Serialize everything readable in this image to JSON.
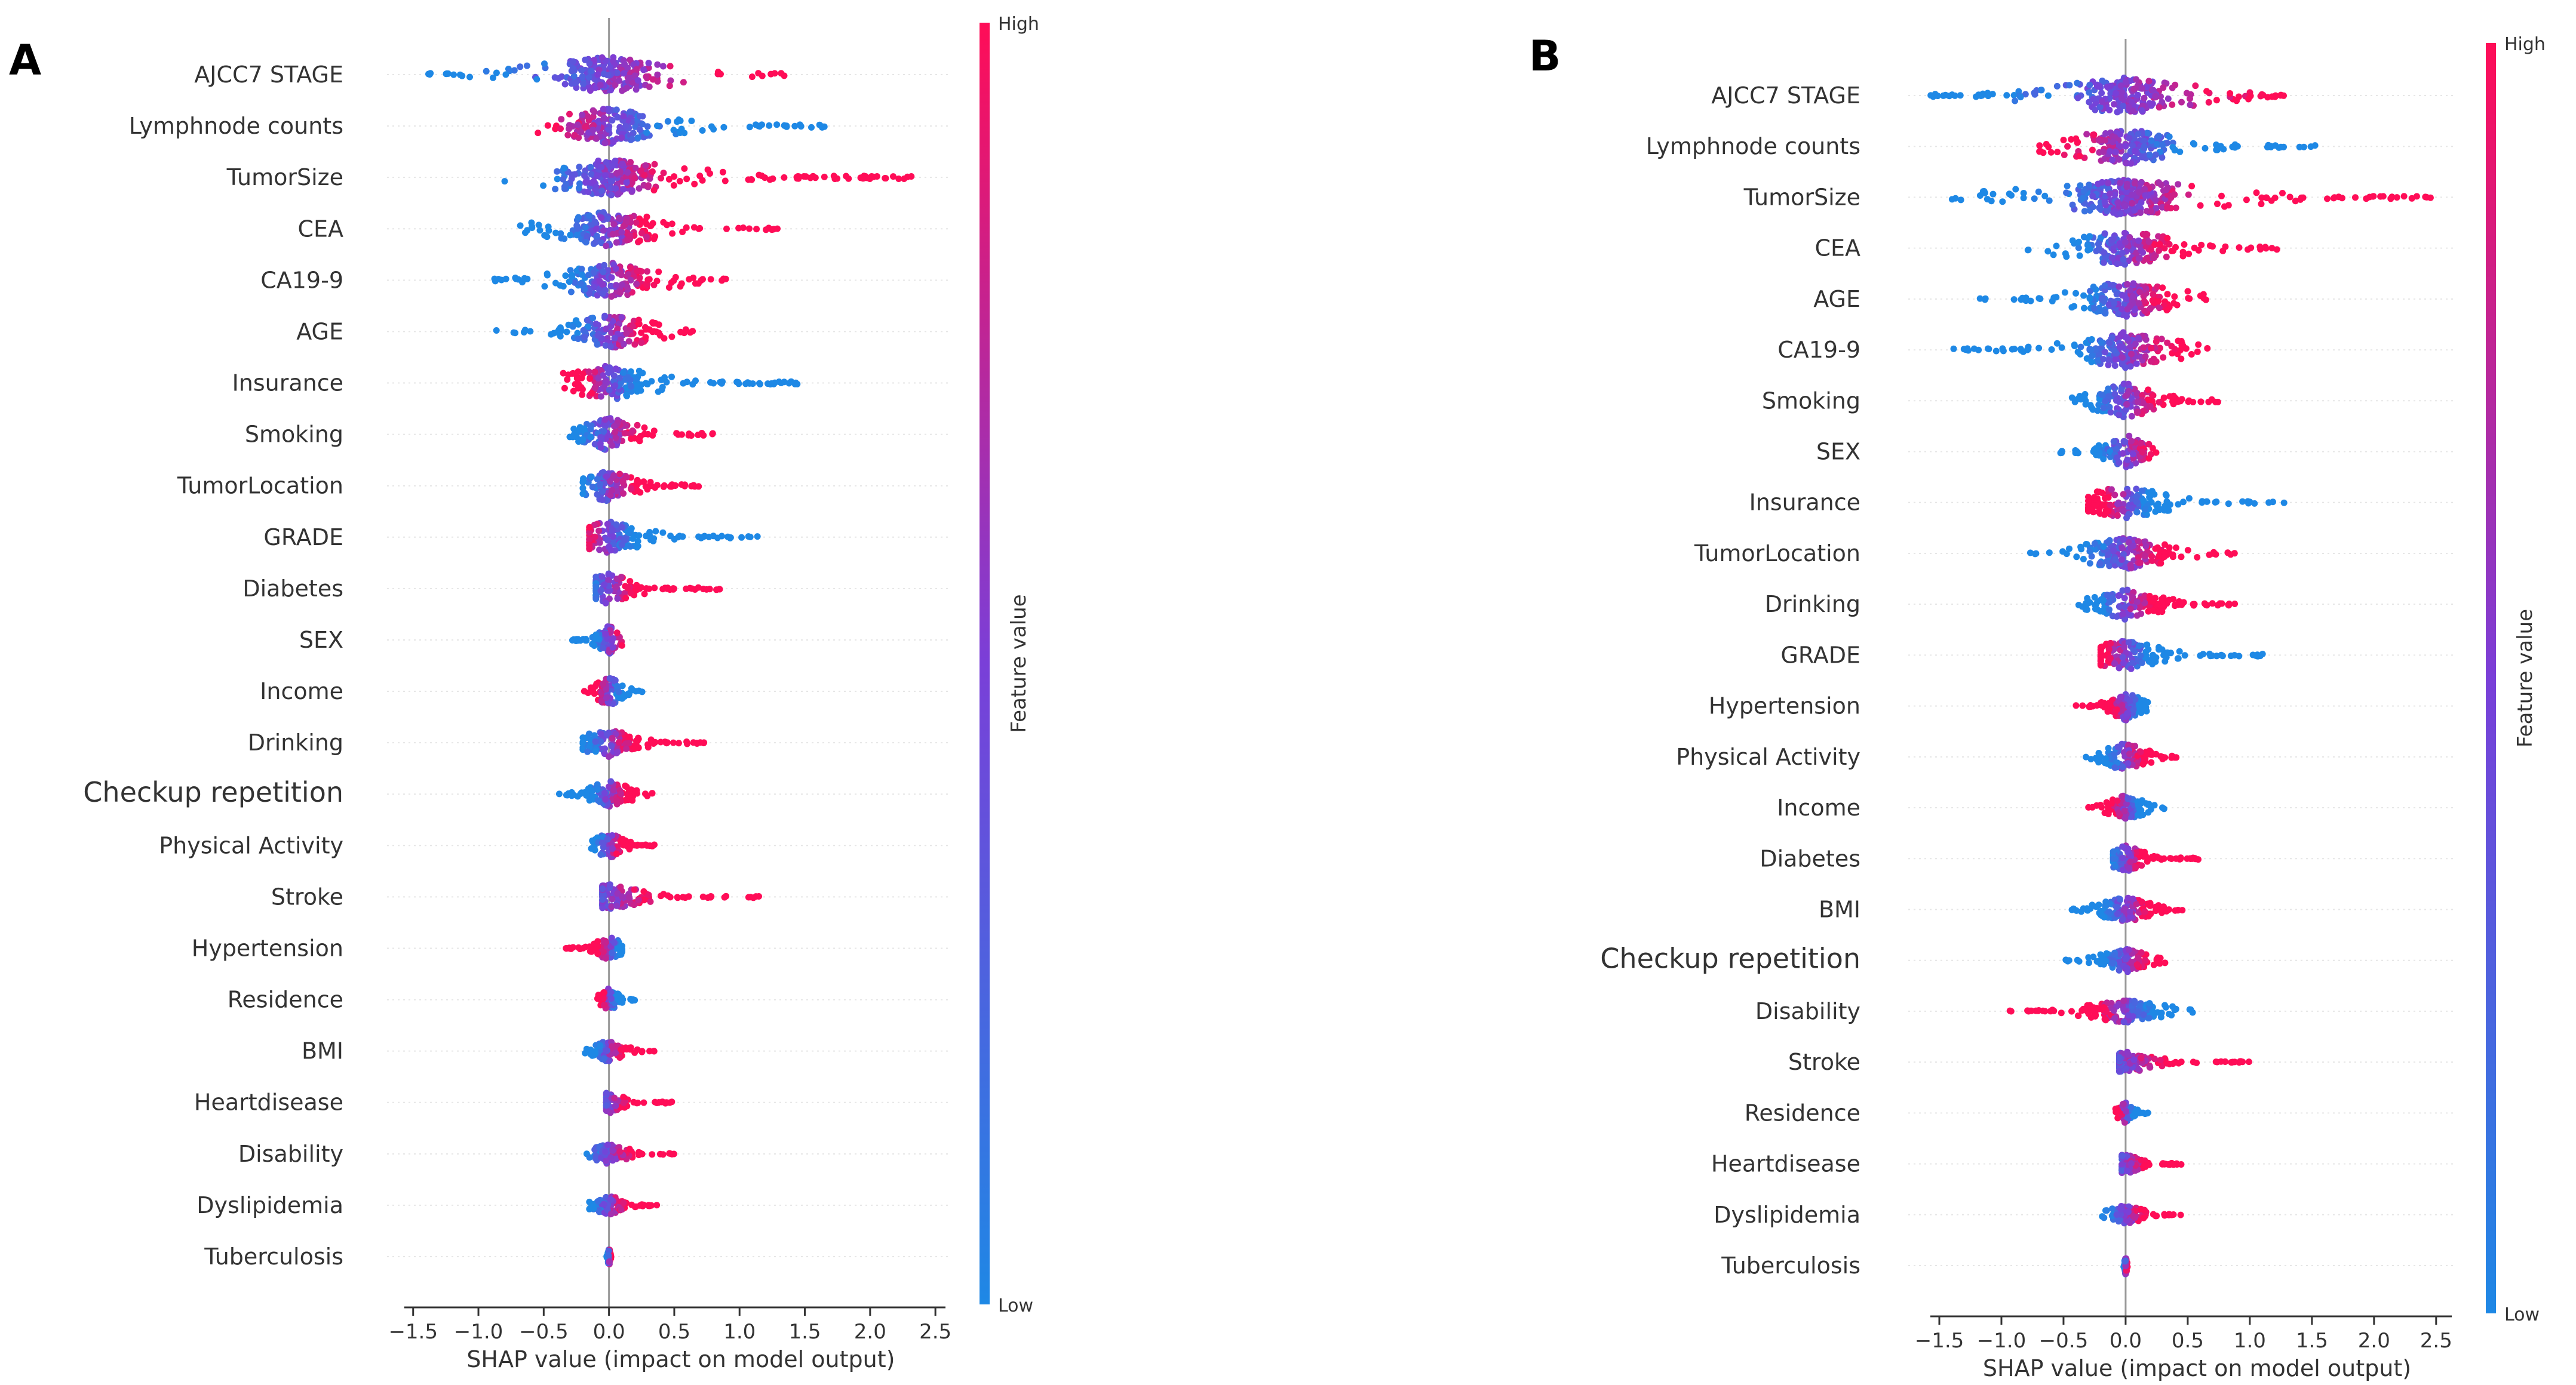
{
  "colors": {
    "high": "#ff0d57",
    "low": "#1e88e5",
    "mid": "#7a3fd8",
    "zero_line": "#999999",
    "axis": "#333333"
  },
  "chart_data": [
    {
      "panel_label": "A",
      "type": "scatter",
      "subtype": "shap-beeswarm",
      "xlabel": "SHAP value (impact on model output)",
      "xlim": [
        -1.7,
        2.6
      ],
      "xticks": [
        -1.5,
        -1.0,
        -0.5,
        0.0,
        0.5,
        1.0,
        1.5,
        2.0,
        2.5
      ],
      "xtick_labels": [
        "−1.5",
        "−1.0",
        "−0.5",
        "0.0",
        "0.5",
        "1.0",
        "1.5",
        "2.0",
        "2.5"
      ],
      "colorbar": {
        "label": "Feature value",
        "high": "High",
        "low": "Low"
      },
      "features": [
        {
          "name": "AJCC7 STAGE",
          "min": -1.45,
          "max": 1.35,
          "low_side": "left",
          "sep": 1.0
        },
        {
          "name": "Lymphnode counts",
          "min": -0.6,
          "max": 1.65,
          "low_side": "right",
          "sep": 0.6
        },
        {
          "name": "TumorSize",
          "min": -0.8,
          "max": 2.35,
          "low_side": "left",
          "sep": 0.5
        },
        {
          "name": "CEA",
          "min": -0.7,
          "max": 1.3,
          "low_side": "left",
          "sep": 0.5
        },
        {
          "name": "CA19-9",
          "min": -0.9,
          "max": 0.95,
          "low_side": "left",
          "sep": 0.5
        },
        {
          "name": "AGE",
          "min": -0.9,
          "max": 0.65,
          "low_side": "left",
          "sep": 0.5
        },
        {
          "name": "Insurance",
          "min": -0.35,
          "max": 1.45,
          "low_side": "right",
          "sep": 0.3
        },
        {
          "name": "Smoking",
          "min": -0.3,
          "max": 0.8,
          "low_side": "left",
          "sep": 0.6
        },
        {
          "name": "TumorLocation",
          "min": -0.2,
          "max": 0.72,
          "low_side": "left",
          "sep": 0.6
        },
        {
          "name": "GRADE",
          "min": -0.15,
          "max": 1.15,
          "low_side": "right",
          "sep": 0.4
        },
        {
          "name": "Diabetes",
          "min": -0.1,
          "max": 0.85,
          "low_side": "left",
          "sep": 0.5
        },
        {
          "name": "SEX",
          "min": -0.3,
          "max": 0.1,
          "low_side": "left",
          "sep": 0.8
        },
        {
          "name": "Income",
          "min": -0.2,
          "max": 0.27,
          "low_side": "right",
          "sep": 0.5
        },
        {
          "name": "Drinking",
          "min": -0.2,
          "max": 0.8,
          "low_side": "left",
          "sep": 0.5
        },
        {
          "name": "Checkup repetition",
          "min": -0.4,
          "max": 0.35,
          "low_side": "left",
          "sep": 0.5
        },
        {
          "name": "Physical Activity",
          "min": -0.15,
          "max": 0.35,
          "low_side": "left",
          "sep": 0.5
        },
        {
          "name": "Stroke",
          "min": -0.05,
          "max": 1.15,
          "low_side": "left",
          "sep": 0.8
        },
        {
          "name": "Hypertension",
          "min": -0.35,
          "max": 0.1,
          "low_side": "right",
          "sep": 0.5
        },
        {
          "name": "Residence",
          "min": -0.1,
          "max": 0.2,
          "low_side": "right",
          "sep": 0.5
        },
        {
          "name": "BMI",
          "min": -0.2,
          "max": 0.35,
          "low_side": "left",
          "sep": 0.5
        },
        {
          "name": "Heartdisease",
          "min": -0.02,
          "max": 0.5,
          "low_side": "left",
          "sep": 0.8
        },
        {
          "name": "Disability",
          "min": -0.2,
          "max": 0.5,
          "low_side": "left",
          "sep": 0.7
        },
        {
          "name": "Dyslipidemia",
          "min": -0.15,
          "max": 0.4,
          "low_side": "left",
          "sep": 0.7
        },
        {
          "name": "Tuberculosis",
          "min": -0.02,
          "max": 0.02,
          "low_side": "left",
          "sep": 0.5
        }
      ]
    },
    {
      "panel_label": "B",
      "type": "scatter",
      "subtype": "shap-beeswarm",
      "xlabel": "SHAP value (impact on model output)",
      "xlim": [
        -1.75,
        2.65
      ],
      "xticks": [
        -1.5,
        -1.0,
        -0.5,
        0.0,
        0.5,
        1.0,
        1.5,
        2.0,
        2.5
      ],
      "xtick_labels": [
        "−1.5",
        "−1.0",
        "−0.5",
        "0.0",
        "0.5",
        "1.0",
        "1.5",
        "2.0",
        "2.5"
      ],
      "colorbar": {
        "label": "Feature value",
        "high": "High",
        "low": "Low"
      },
      "features": [
        {
          "name": "AJCC7 STAGE",
          "min": -1.6,
          "max": 1.3,
          "low_side": "left",
          "sep": 1.0
        },
        {
          "name": "Lymphnode counts",
          "min": -0.7,
          "max": 1.55,
          "low_side": "right",
          "sep": 0.6
        },
        {
          "name": "TumorSize",
          "min": -1.4,
          "max": 2.5,
          "low_side": "left",
          "sep": 0.5
        },
        {
          "name": "CEA",
          "min": -0.8,
          "max": 1.25,
          "low_side": "left",
          "sep": 0.5
        },
        {
          "name": "AGE",
          "min": -1.2,
          "max": 0.75,
          "low_side": "left",
          "sep": 0.5
        },
        {
          "name": "CA19-9",
          "min": -1.4,
          "max": 0.75,
          "low_side": "left",
          "sep": 0.5
        },
        {
          "name": "Smoking",
          "min": -0.45,
          "max": 0.75,
          "low_side": "left",
          "sep": 0.6
        },
        {
          "name": "SEX",
          "min": -0.55,
          "max": 0.25,
          "low_side": "left",
          "sep": 0.8
        },
        {
          "name": "Insurance",
          "min": -0.3,
          "max": 1.3,
          "low_side": "right",
          "sep": 0.3
        },
        {
          "name": "TumorLocation",
          "min": -0.8,
          "max": 0.95,
          "low_side": "left",
          "sep": 0.5
        },
        {
          "name": "Drinking",
          "min": -0.4,
          "max": 0.9,
          "low_side": "left",
          "sep": 0.5
        },
        {
          "name": "GRADE",
          "min": -0.2,
          "max": 1.15,
          "low_side": "right",
          "sep": 0.4
        },
        {
          "name": "Hypertension",
          "min": -0.4,
          "max": 0.2,
          "low_side": "right",
          "sep": 0.5
        },
        {
          "name": "Physical Activity",
          "min": -0.35,
          "max": 0.45,
          "low_side": "left",
          "sep": 0.5
        },
        {
          "name": "Income",
          "min": -0.3,
          "max": 0.35,
          "low_side": "right",
          "sep": 0.5
        },
        {
          "name": "Diabetes",
          "min": -0.1,
          "max": 0.6,
          "low_side": "left",
          "sep": 0.5
        },
        {
          "name": "BMI",
          "min": -0.45,
          "max": 0.55,
          "low_side": "left",
          "sep": 0.5
        },
        {
          "name": "Checkup repetition",
          "min": -0.5,
          "max": 0.4,
          "low_side": "left",
          "sep": 0.5
        },
        {
          "name": "Disability",
          "min": -0.95,
          "max": 0.55,
          "low_side": "right",
          "sep": 0.4
        },
        {
          "name": "Stroke",
          "min": -0.05,
          "max": 1.0,
          "low_side": "left",
          "sep": 0.8
        },
        {
          "name": "Residence",
          "min": -0.1,
          "max": 0.2,
          "low_side": "right",
          "sep": 0.5
        },
        {
          "name": "Heartdisease",
          "min": -0.03,
          "max": 0.5,
          "low_side": "left",
          "sep": 0.8
        },
        {
          "name": "Dyslipidemia",
          "min": -0.2,
          "max": 0.45,
          "low_side": "left",
          "sep": 0.7
        },
        {
          "name": "Tuberculosis",
          "min": -0.02,
          "max": 0.02,
          "low_side": "left",
          "sep": 0.5
        }
      ]
    }
  ]
}
